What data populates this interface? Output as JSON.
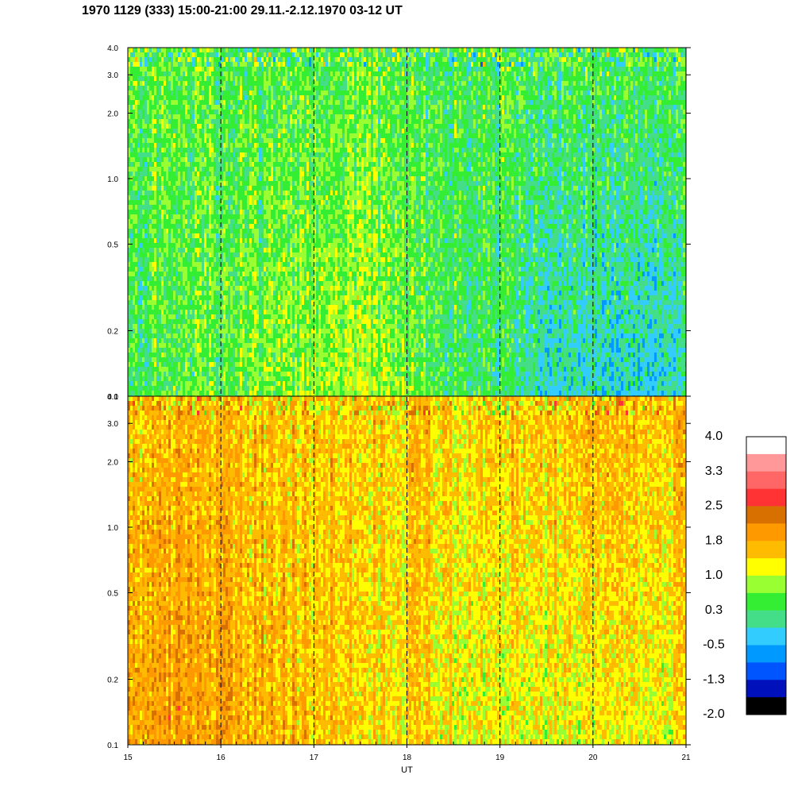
{
  "title": "1970 1129 (333) 15:00-21:00 29.11.-2.12.1970  03-12 UT",
  "chart_data": {
    "type": "heatmap",
    "panels": [
      {
        "name": "",
        "x_range": [
          15,
          21
        ],
        "y_range": [
          0.1,
          4.0
        ],
        "y_scale": "log",
        "y_ticks": [
          0.1,
          0.2,
          0.5,
          1.0,
          2.0,
          3.0,
          4.0
        ],
        "y_tick_labels": [
          "0.1",
          "0.2",
          "0.5",
          "1.0",
          "2.0",
          "3.0",
          "4.0"
        ],
        "dominant_levels_low_freq": [
          0.3,
          0.6,
          0.9,
          0.3,
          -0.2,
          -0.2
        ],
        "dominant_levels_high_freq": [
          0.6,
          0.4,
          0.5,
          0.4,
          0.4,
          0.4
        ]
      },
      {
        "name": "",
        "x_range": [
          15,
          21
        ],
        "y_range": [
          0.1,
          4.0
        ],
        "y_scale": "log",
        "y_ticks": [
          0.1,
          0.2,
          0.5,
          1.0,
          2.0,
          3.0,
          4.0
        ],
        "y_tick_labels": [
          "0.1",
          "0.2",
          "0.5",
          "1.0",
          "2.0",
          "3.0",
          "4.0"
        ],
        "dominant_levels_low_freq": [
          1.9,
          1.8,
          1.5,
          1.2,
          1.1,
          1.2
        ],
        "dominant_levels_high_freq": [
          1.6,
          1.6,
          1.5,
          1.5,
          1.6,
          1.6
        ]
      }
    ],
    "x_ticks": [
      15,
      16,
      17,
      18,
      19,
      20,
      21
    ],
    "x_tick_labels": [
      "15",
      "16",
      "17",
      "18",
      "19",
      "20",
      "21"
    ],
    "xlabel": "UT",
    "hour_markers": [
      16,
      17,
      18,
      19,
      20
    ],
    "colorbar": {
      "range": [
        -2.0,
        4.0
      ],
      "labels": [
        "4.0",
        "3.3",
        "2.5",
        "1.8",
        "1.0",
        "0.3",
        "-0.5",
        "-1.3",
        "-2.0"
      ],
      "colors": [
        "#ffffff",
        "#ff9999",
        "#ff6666",
        "#ff3333",
        "#d87000",
        "#ff9900",
        "#ffbb00",
        "#ffff00",
        "#99ff33",
        "#33ee33",
        "#44dd88",
        "#33ccff",
        "#0099ff",
        "#0055ff",
        "#0011bb",
        "#000000"
      ]
    }
  }
}
